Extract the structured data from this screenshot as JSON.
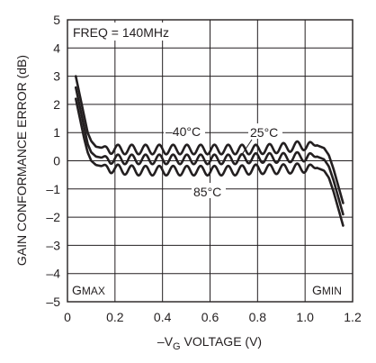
{
  "chart_data": {
    "type": "line",
    "xlabel_main": "–V",
    "xlabel_sub": "G",
    "xlabel_rest": " VOLTAGE (V)",
    "ylabel": "GAIN CONFORMANCE ERROR (dB)",
    "xlim": [
      0,
      1.2
    ],
    "ylim": [
      -5,
      5
    ],
    "x_ticks": [
      "0",
      "0.2",
      "0.4",
      "0.6",
      "0.8",
      "1.0",
      "1.2"
    ],
    "y_ticks": [
      "5",
      "4",
      "3",
      "2",
      "1",
      "0",
      "–1",
      "–2",
      "–3",
      "–4",
      "–5"
    ],
    "grid": true,
    "annotations": {
      "freq": "FREQ = 140MHz",
      "gmax_main": "G",
      "gmax_sub": "MAX",
      "gmin_main": "G",
      "gmin_sub": "MIN",
      "label_m40": "–40°C",
      "label_25": "25°C",
      "label_85": "85°C"
    },
    "series": [
      {
        "name": "–40°C",
        "x": [
          0.035,
          0.05,
          0.07,
          0.085,
          0.1,
          0.12,
          0.15,
          0.2,
          0.3,
          0.4,
          0.5,
          0.6,
          0.7,
          0.8,
          0.9,
          1.0,
          1.05,
          1.08,
          1.1,
          1.12,
          1.14,
          1.16
        ],
        "y": [
          3.0,
          2.4,
          1.6,
          1.0,
          0.7,
          0.5,
          0.45,
          0.4,
          0.4,
          0.4,
          0.4,
          0.4,
          0.4,
          0.4,
          0.45,
          0.55,
          0.55,
          0.45,
          0.2,
          -0.3,
          -0.9,
          -1.5
        ]
      },
      {
        "name": "25°C",
        "x": [
          0.035,
          0.05,
          0.07,
          0.085,
          0.1,
          0.12,
          0.15,
          0.2,
          0.3,
          0.4,
          0.5,
          0.6,
          0.7,
          0.8,
          0.9,
          1.0,
          1.05,
          1.08,
          1.1,
          1.12,
          1.14,
          1.16
        ],
        "y": [
          2.6,
          2.0,
          1.2,
          0.6,
          0.3,
          0.15,
          0.1,
          0.05,
          0.05,
          0.05,
          0.05,
          0.05,
          0.05,
          0.1,
          0.1,
          0.15,
          0.15,
          0.05,
          -0.2,
          -0.7,
          -1.3,
          -1.9
        ]
      },
      {
        "name": "85°C",
        "x": [
          0.035,
          0.05,
          0.07,
          0.085,
          0.1,
          0.12,
          0.15,
          0.2,
          0.3,
          0.4,
          0.5,
          0.6,
          0.7,
          0.8,
          0.9,
          1.0,
          1.05,
          1.08,
          1.1,
          1.12,
          1.14,
          1.16
        ],
        "y": [
          2.2,
          1.6,
          0.8,
          0.3,
          0.0,
          -0.15,
          -0.2,
          -0.3,
          -0.35,
          -0.35,
          -0.35,
          -0.35,
          -0.35,
          -0.3,
          -0.3,
          -0.25,
          -0.25,
          -0.35,
          -0.6,
          -1.1,
          -1.7,
          -2.3
        ]
      }
    ]
  }
}
